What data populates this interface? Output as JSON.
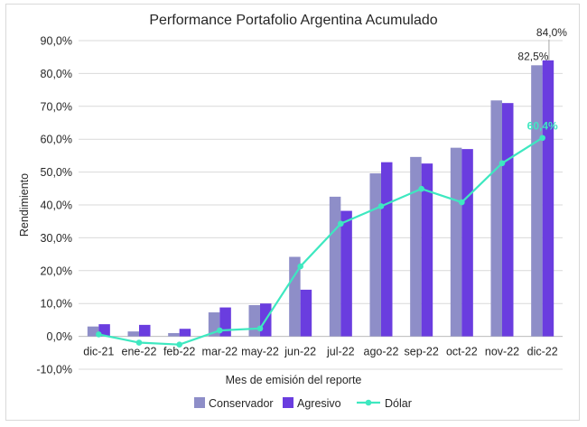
{
  "chart_data": {
    "type": "bar",
    "title": "Performance Portafolio Argentina Acumulado",
    "xlabel": "Mes de emisión del reporte",
    "ylabel": "Rendimiento",
    "ylim": [
      -10,
      90
    ],
    "ytick_step": 10,
    "ytick_labels": [
      "-10,0%",
      "0,0%",
      "10,0%",
      "20,0%",
      "30,0%",
      "40,0%",
      "50,0%",
      "60,0%",
      "70,0%",
      "80,0%",
      "90,0%"
    ],
    "categories": [
      "dic-21",
      "ene-22",
      "feb-22",
      "mar-22",
      "may-22",
      "jun-22",
      "jul-22",
      "ago-22",
      "sep-22",
      "oct-22",
      "nov-22",
      "dic-22"
    ],
    "grid": true,
    "legend_position": "bottom",
    "series": [
      {
        "name": "Conservador",
        "kind": "bar",
        "color": "#8e8ec8",
        "values": [
          3.0,
          1.5,
          1.0,
          7.3,
          9.5,
          24.2,
          42.5,
          49.6,
          54.6,
          57.4,
          71.8,
          82.5
        ]
      },
      {
        "name": "Agresivo",
        "kind": "bar",
        "color": "#6a3ddf",
        "values": [
          3.7,
          3.5,
          2.3,
          8.8,
          10.0,
          14.2,
          38.2,
          53.0,
          52.6,
          57.0,
          71.0,
          84.0
        ]
      },
      {
        "name": "Dólar",
        "kind": "line",
        "color": "#3ee8c0",
        "values": [
          0.6,
          -1.9,
          -2.5,
          1.8,
          2.4,
          21.3,
          34.3,
          39.6,
          44.9,
          40.8,
          52.7,
          60.4
        ]
      }
    ],
    "annotations": [
      {
        "series": "Conservador",
        "category": "dic-22",
        "text": "82,5%"
      },
      {
        "series": "Agresivo",
        "category": "dic-22",
        "text": "84,0%"
      },
      {
        "series": "Dólar",
        "category": "dic-22",
        "text": "60,4%"
      }
    ]
  }
}
